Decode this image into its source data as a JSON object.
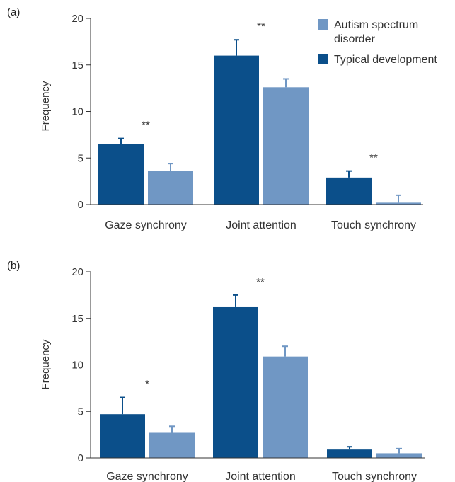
{
  "colors": {
    "typical": "#0b4f8a",
    "asd": "#7097c4",
    "axis": "#333333"
  },
  "legend": {
    "asd_line1": "Autism spectrum",
    "asd_line2": "disorder",
    "typical": "Typical development"
  },
  "chart_data": [
    {
      "panel_label": "(a)",
      "type": "bar",
      "ylabel": "Frequency",
      "ylim": [
        0,
        20
      ],
      "yticks": [
        "0",
        "5",
        "10",
        "15",
        "20"
      ],
      "categories": [
        "Gaze synchrony",
        "Joint attention",
        "Touch synchrony"
      ],
      "series": [
        {
          "name": "Typical development",
          "values": [
            6.5,
            16.0,
            2.9
          ],
          "errors": [
            0.6,
            1.7,
            0.7
          ]
        },
        {
          "name": "Autism spectrum disorder",
          "values": [
            3.6,
            12.6,
            0.2
          ],
          "errors": [
            0.8,
            0.9,
            0.8
          ]
        }
      ],
      "significance": [
        "**",
        "**",
        "**"
      ],
      "grid": false
    },
    {
      "panel_label": "(b)",
      "type": "bar",
      "ylabel": "Frequency",
      "ylim": [
        0,
        20
      ],
      "yticks": [
        "0",
        "5",
        "10",
        "15",
        "20"
      ],
      "categories": [
        "Gaze synchrony",
        "Joint attention",
        "Touch synchrony"
      ],
      "series": [
        {
          "name": "Typical development",
          "values": [
            4.7,
            16.2,
            0.9
          ],
          "errors": [
            1.8,
            1.3,
            0.3
          ]
        },
        {
          "name": "Autism spectrum disorder",
          "values": [
            2.7,
            10.9,
            0.5
          ],
          "errors": [
            0.7,
            1.1,
            0.5
          ]
        }
      ],
      "significance": [
        "*",
        "**",
        ""
      ],
      "grid": false
    }
  ]
}
